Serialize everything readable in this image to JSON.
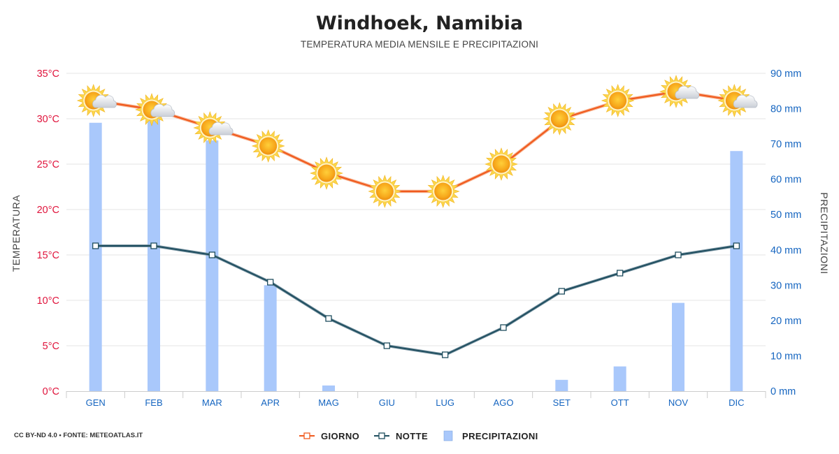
{
  "header": {
    "title": "Windhoek, Namibia",
    "subtitle": "TEMPERATURA MEDIA MENSILE E PRECIPITAZIONI"
  },
  "footer": {
    "credit": "CC BY-ND 4.0 • FONTE: METEOATLAS.IT"
  },
  "colors": {
    "day": "#f05a1e",
    "night": "#1f4e5f",
    "rain": "#a9c8fb",
    "left_axis": "#e0143c",
    "right_axis": "#1565c0"
  },
  "chart_data": {
    "type": "line",
    "title": "Windhoek, Namibia",
    "subtitle": "TEMPERATURA MEDIA MENSILE E PRECIPITAZIONI",
    "categories": [
      "GEN",
      "FEB",
      "MAR",
      "APR",
      "MAG",
      "GIU",
      "LUG",
      "AGO",
      "SET",
      "OTT",
      "NOV",
      "DIC"
    ],
    "ylabel": "TEMPERATURA",
    "ylabel_right": "PRECIPITAZIONI",
    "ylim": [
      0,
      35
    ],
    "ylim_right": [
      0,
      90
    ],
    "yticks": [
      "0°C",
      "5°C",
      "10°C",
      "15°C",
      "20°C",
      "25°C",
      "30°C",
      "35°C"
    ],
    "yticks_right": [
      "0 mm",
      "10 mm",
      "20 mm",
      "30 mm",
      "40 mm",
      "50 mm",
      "60 mm",
      "70 mm",
      "80 mm",
      "90 mm"
    ],
    "grid": true,
    "legend_position": "bottom-center",
    "series": [
      {
        "name": "GIORNO",
        "type": "line",
        "axis": "left",
        "values": [
          32,
          31,
          29,
          27,
          24,
          22,
          22,
          25,
          30,
          32,
          33,
          32
        ],
        "icons": [
          "sun-cloud-icon",
          "sun-cloud-icon",
          "sun-cloud-icon",
          "sun-icon",
          "sun-icon",
          "sun-icon",
          "sun-icon",
          "sun-icon",
          "sun-icon",
          "sun-icon",
          "sun-cloud-icon",
          "sun-cloud-icon"
        ]
      },
      {
        "name": "NOTTE",
        "type": "line",
        "axis": "left",
        "values": [
          16,
          16,
          15,
          12,
          8,
          5,
          4,
          7,
          11,
          13,
          15,
          16
        ]
      },
      {
        "name": "PRECIPITAZIONI",
        "type": "bar",
        "axis": "right",
        "values": [
          76,
          77,
          71,
          30,
          1.6,
          0,
          0,
          0,
          3.2,
          7,
          25,
          68
        ]
      }
    ]
  }
}
